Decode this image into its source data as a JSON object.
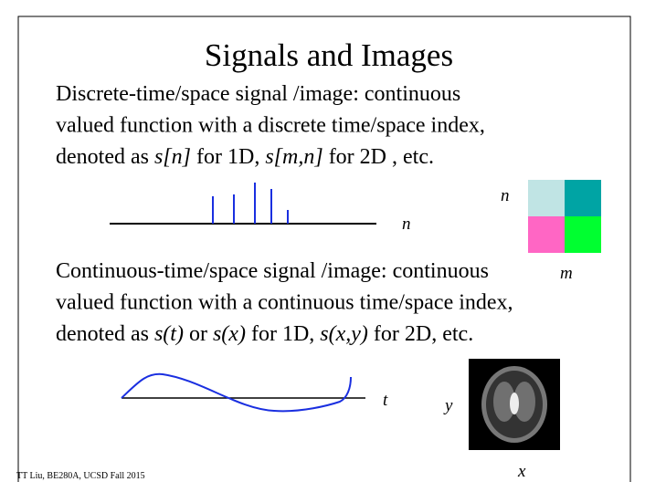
{
  "title": "Signals and Images",
  "discrete": {
    "lines": [
      [
        {
          "text": "Discrete-time/space signal /image: continuous"
        }
      ],
      [
        {
          "text": "valued function with a discrete time/space index,"
        }
      ],
      [
        {
          "text": "denoted as "
        },
        {
          "text": "s[n]",
          "italic": true
        },
        {
          "text": " for 1D, "
        },
        {
          "text": "s[m,n]",
          "italic": true
        },
        {
          "text": " for 2D , etc."
        }
      ]
    ],
    "axis_label": "n",
    "grid_row_label": "n",
    "grid_col_label": "m"
  },
  "continuous": {
    "lines": [
      [
        {
          "text": "Continuous-time/space signal /image: continuous"
        }
      ],
      [
        {
          "text": "valued function with a continuous time/space index,"
        }
      ],
      [
        {
          "text": "denoted as "
        },
        {
          "text": "s(t)",
          "italic": true
        },
        {
          "text": " or "
        },
        {
          "text": "s(x)",
          "italic": true
        },
        {
          "text": " for 1D, "
        },
        {
          "text": "s(x,y)",
          "italic": true
        },
        {
          "text": " for 2D, etc."
        }
      ]
    ],
    "axis_label": "t",
    "image_y_label": "y",
    "image_x_label": "x"
  },
  "footer": "TT Liu, BE280A, UCSD Fall 2015"
}
